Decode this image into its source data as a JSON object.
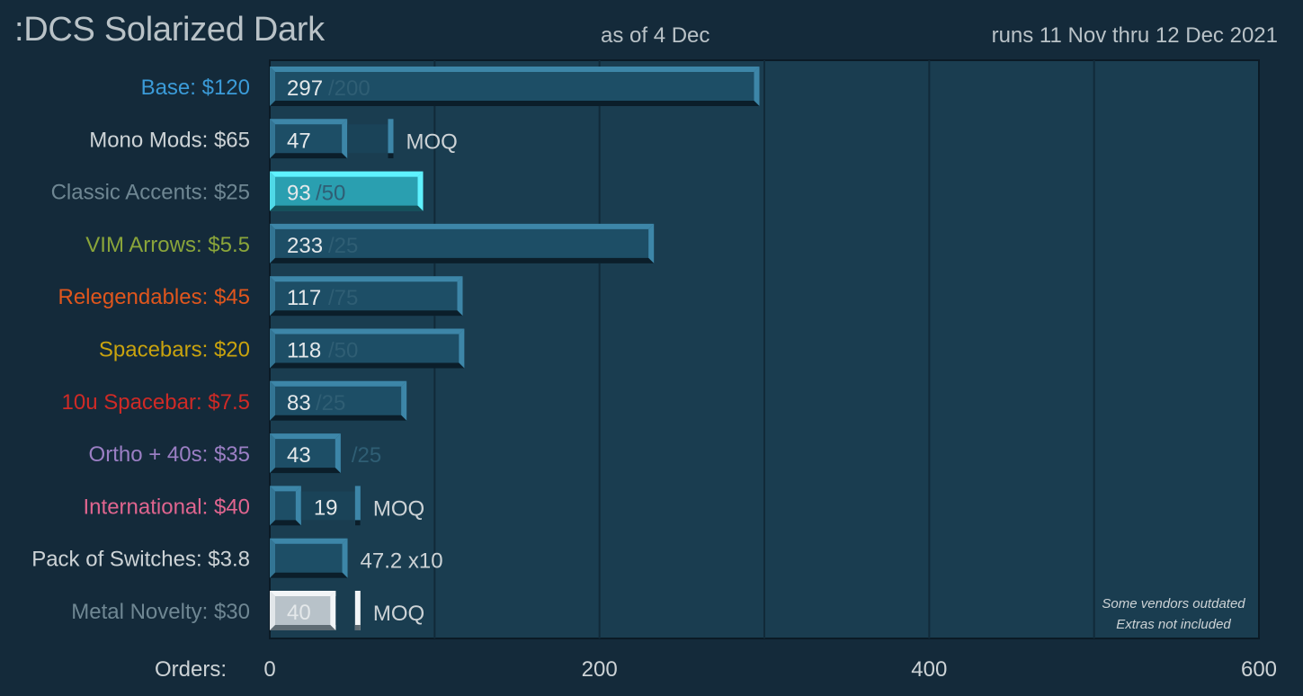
{
  "header": {
    "title": ":DCS Solarized Dark",
    "as_of": "as of  4 Dec",
    "runs": "runs  11 Nov  thru  12 Dec  2021"
  },
  "chart_data": {
    "type": "bar",
    "orientation": "horizontal",
    "xlabel": "Orders:",
    "xlim": [
      0,
      600
    ],
    "xticks": [
      0,
      200,
      400,
      600
    ],
    "grid": true,
    "categories": [
      {
        "name": "Base:",
        "price": "$120",
        "value": 297,
        "label": "297",
        "goal": "/200",
        "suffix": "",
        "color": "#3b9bd8"
      },
      {
        "name": "Mono Mods:",
        "price": "$65",
        "value": 47,
        "label": "47",
        "goal": "",
        "suffix": "MOQ",
        "moq": 75,
        "color": "#cdd3d6"
      },
      {
        "name": "Classic Accents:",
        "price": "$25",
        "value": 93,
        "label": "93",
        "goal": "/50",
        "suffix": "",
        "color": "#6f8793",
        "highlight": true
      },
      {
        "name": "VIM Arrows:",
        "price": "$5.5",
        "value": 233,
        "label": "233",
        "goal": "/25",
        "suffix": "",
        "color": "#8aa53a"
      },
      {
        "name": "Relegendables:",
        "price": "$45",
        "value": 117,
        "label": "117",
        "goal": "/75",
        "suffix": "",
        "color": "#e0561d"
      },
      {
        "name": "Spacebars:",
        "price": "$20",
        "value": 118,
        "label": "118",
        "goal": "/50",
        "suffix": "",
        "color": "#c9a30e"
      },
      {
        "name": "10u Spacebar:",
        "price": "$7.5",
        "value": 83,
        "label": "83",
        "goal": "/25",
        "suffix": "",
        "color": "#cf2a26"
      },
      {
        "name": "Ortho + 40s:",
        "price": "$35",
        "value": 43,
        "label": "43",
        "goal": "/25",
        "suffix": "",
        "color": "#9b7fc4"
      },
      {
        "name": "International:",
        "price": "$40",
        "value": 19,
        "label": "19",
        "goal": "",
        "suffix": "MOQ",
        "moq": 55,
        "color": "#e0658f"
      },
      {
        "name": "Pack of Switches:",
        "price": "$3.8",
        "value": 47.2,
        "label": "",
        "goal": "",
        "suffix": "47.2 x10",
        "color": "#cdd3d6"
      },
      {
        "name": "Metal Novelty:",
        "price": "$30",
        "value": 40,
        "label": "40",
        "goal": "",
        "suffix": "MOQ",
        "moq": 55,
        "color": "#6f8793",
        "silver": true
      }
    ],
    "notes": [
      "Some vendors outdated",
      "Extras not included"
    ]
  }
}
